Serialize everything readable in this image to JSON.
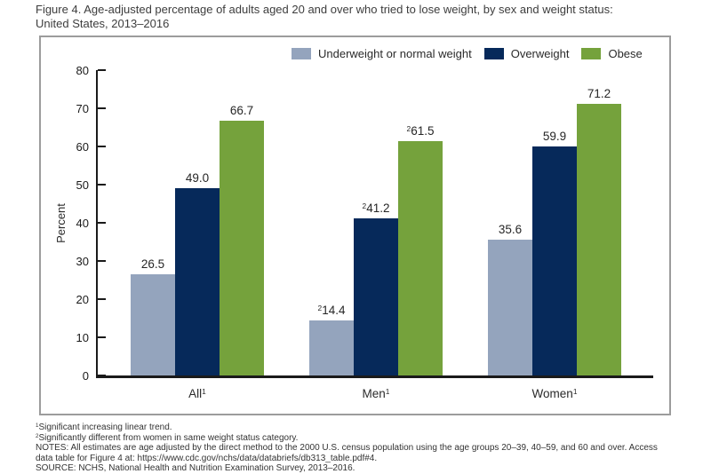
{
  "title": {
    "line1": "Figure 4. Age-adjusted percentage of adults aged 20 and over who tried to lose weight, by sex and weight status:",
    "line2": "United States, 2013–2016"
  },
  "chart_data": {
    "type": "bar",
    "title": "Figure 4. Age-adjusted percentage of adults aged 20 and over who tried to lose weight, by sex and weight status: United States, 2013–2016",
    "xlabel": "",
    "ylabel": "Percent",
    "ylim": [
      0,
      80
    ],
    "ytick_step": 10,
    "grid": false,
    "legend_position": "top-right",
    "categories": [
      "All",
      "Men",
      "Women"
    ],
    "category_sups": [
      "1",
      "1",
      "1"
    ],
    "series": [
      {
        "name": "Underweight or normal weight",
        "color": "#94a4bd",
        "values": [
          26.5,
          14.4,
          35.6
        ],
        "value_sups": [
          "",
          "2",
          ""
        ]
      },
      {
        "name": "Overweight",
        "color": "#06295a",
        "values": [
          49.0,
          41.2,
          59.9
        ],
        "value_sups": [
          "",
          "2",
          ""
        ]
      },
      {
        "name": "Obese",
        "color": "#75a23c",
        "values": [
          66.7,
          61.5,
          71.2
        ],
        "value_sups": [
          "",
          "2",
          ""
        ]
      }
    ]
  },
  "footnotes": [
    {
      "sup": "1",
      "text": "Significant increasing linear trend."
    },
    {
      "sup": "2",
      "text": "Significantly different from women in same weight status category."
    },
    {
      "sup": "",
      "text": "NOTES: All estimates are age adjusted by the direct method to the 2000 U.S. census population using the age groups 20–39, 40–59, and 60 and over. Access data table for Figure 4 at: https://www.cdc.gov/nchs/data/databriefs/db313_table.pdf#4."
    },
    {
      "sup": "",
      "text": "SOURCE: NCHS, National Health and Nutrition Examination Survey, 2013–2016."
    }
  ]
}
